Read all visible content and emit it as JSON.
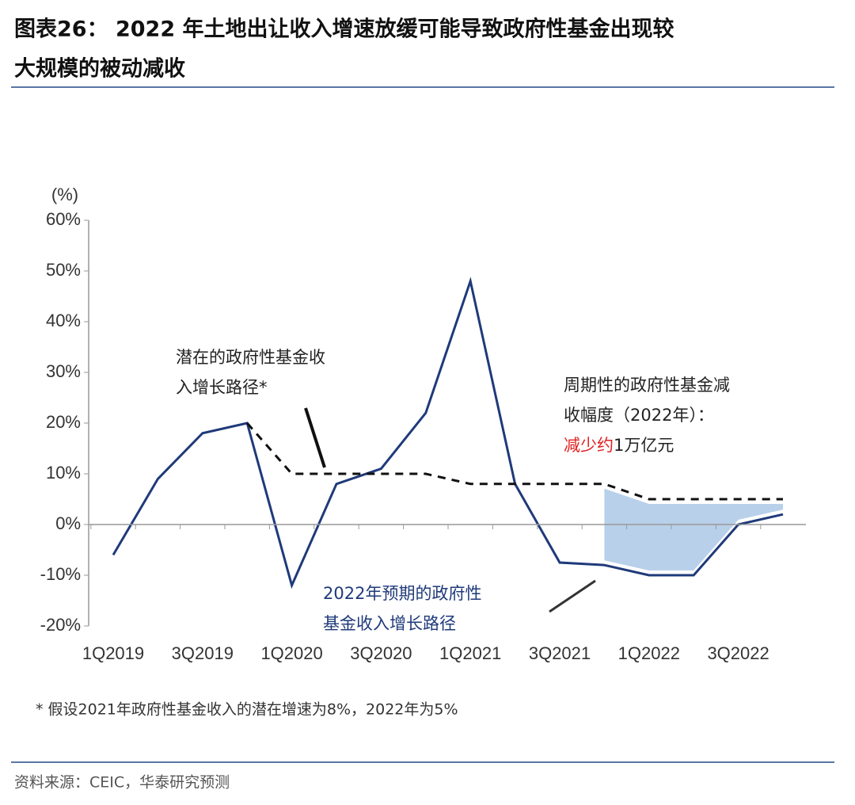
{
  "chart_data": {
    "type": "line",
    "title_lines": [
      "图表26：  2022 年土地出让收入增速放缓可能导致政府性基金出现较",
      "大规模的被动减收"
    ],
    "y_label": "(%)",
    "categories": [
      "1Q2019",
      null,
      "3Q2019",
      null,
      "1Q2020",
      null,
      "3Q2020",
      null,
      "1Q2021",
      null,
      "3Q2021",
      null,
      "1Q2022",
      null,
      "3Q2022",
      null
    ],
    "series": [
      {
        "color": "#1f3a7a",
        "style": "solid",
        "values": [
          -6,
          9,
          18,
          20,
          -12,
          8,
          11,
          22,
          48,
          8,
          -7.5,
          -8,
          -10,
          -10,
          0,
          2
        ]
      },
      {
        "color": "#111111",
        "style": "dashed",
        "values": [
          null,
          null,
          null,
          20,
          10,
          10,
          10,
          10,
          8,
          8,
          8,
          8,
          5,
          5,
          5,
          5
        ]
      }
    ],
    "area_color": "#b8d0ea",
    "ylim": [
      -20,
      60
    ],
    "yticks": [
      {
        "value": -20,
        "label": "-20%"
      },
      {
        "value": -10,
        "label": "-10%"
      },
      {
        "value": 0,
        "label": "0%"
      },
      {
        "value": 10,
        "label": "10%"
      },
      {
        "value": 20,
        "label": "20%"
      },
      {
        "value": 30,
        "label": "30%"
      },
      {
        "value": 40,
        "label": "40%"
      },
      {
        "value": 50,
        "label": "50%"
      },
      {
        "value": 60,
        "label": "60%"
      }
    ],
    "annotations": {
      "potential": [
        "潜在的政府性基金收",
        "入增长路径*"
      ],
      "cyclical": [
        "周期性的政府性基金减",
        "收幅度（2022年）："
      ],
      "cyclical_red": "减少约",
      "cyclical_amount": "1万亿元",
      "expected": [
        "2022年预期的政府性",
        "基金收入增长路径"
      ]
    },
    "note": "* 假设2021年政府性基金收入的潜在增速为8%，2022年为5%",
    "source": "资料来源：CEIC，华泰研究预测"
  }
}
